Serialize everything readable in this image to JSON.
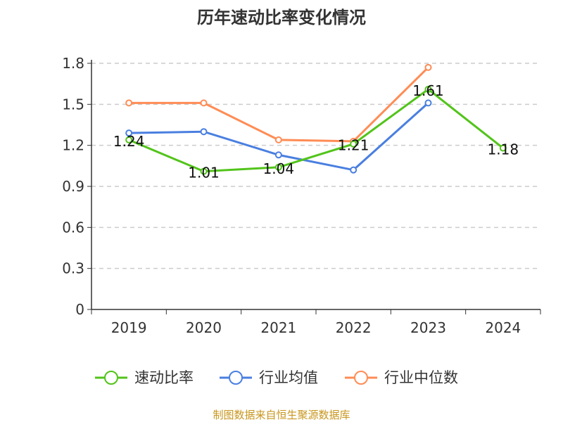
{
  "chart_data": {
    "type": "line",
    "title": "历年速动比率变化情况",
    "categories": [
      "2019",
      "2020",
      "2021",
      "2022",
      "2023",
      "2024"
    ],
    "ylim": [
      0,
      1.8
    ],
    "yticks": [
      0,
      0.3,
      0.6,
      0.9,
      1.2,
      1.5,
      1.8
    ],
    "ytick_labels": [
      "0",
      "0.3",
      "0.6",
      "0.9",
      "1.2",
      "1.5",
      "1.8"
    ],
    "grid": true,
    "legend_position": "bottom",
    "series": [
      {
        "name": "速动比率",
        "color": "#52c41a",
        "values": [
          1.24,
          1.01,
          1.04,
          1.21,
          1.61,
          1.18
        ],
        "labels": [
          "1.24",
          "1.01",
          "1.04",
          "1.21",
          "1.61",
          "1.18"
        ]
      },
      {
        "name": "行业均值",
        "color": "#4a7fe0",
        "values": [
          1.29,
          1.3,
          1.13,
          1.02,
          1.51,
          null
        ]
      },
      {
        "name": "行业中位数",
        "color": "#ff8c55",
        "values": [
          1.51,
          1.51,
          1.24,
          1.23,
          1.77,
          null
        ]
      }
    ],
    "source": "制图数据来自恒生聚源数据库",
    "source_color": "#c8961e"
  }
}
